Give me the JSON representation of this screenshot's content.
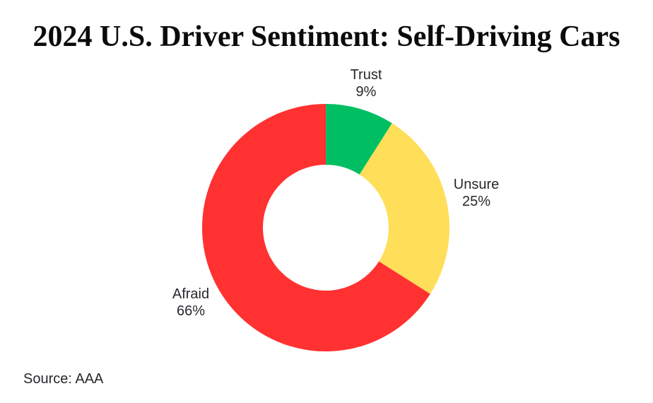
{
  "title": "2024 U.S. Driver Sentiment: Self-Driving Cars",
  "source_note": "Source: AAA",
  "chart_data": {
    "type": "pie",
    "subtype": "donut",
    "title": "2024 U.S. Driver Sentiment: Self-Driving Cars",
    "source": "Source: AAA",
    "start_angle_deg": 0,
    "direction": "clockwise",
    "inner_radius_ratio": 0.51,
    "legend_position": "none",
    "background_color": "#ffffff",
    "categories": [
      "Trust",
      "Unsure",
      "Afraid"
    ],
    "values": [
      9,
      25,
      66
    ],
    "unit": "%",
    "segments": [
      {
        "label": "Trust",
        "value": 9,
        "value_label": "9%",
        "color": "#00BF63"
      },
      {
        "label": "Unsure",
        "value": 25,
        "value_label": "25%",
        "color": "#FFDE59"
      },
      {
        "label": "Afraid",
        "value": 66,
        "value_label": "66%",
        "color": "#FF3131"
      }
    ]
  }
}
